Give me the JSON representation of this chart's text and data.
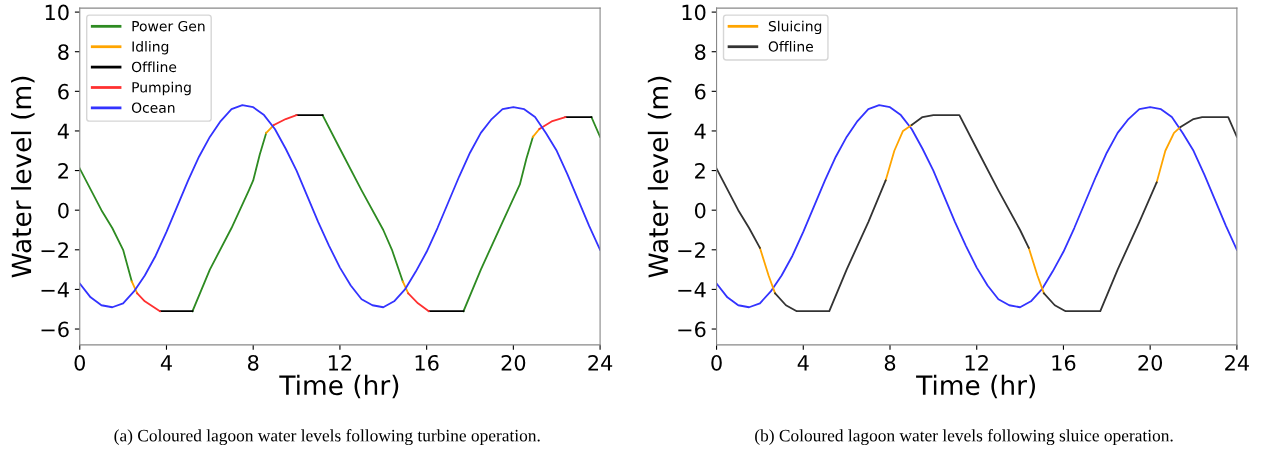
{
  "chart_data": [
    {
      "type": "line",
      "xlabel": "Time (hr)",
      "ylabel": "Water level (m)",
      "xlim": [
        0,
        24
      ],
      "ylim": [
        -6.8,
        10.2
      ],
      "xticks": [
        0,
        4,
        8,
        12,
        16,
        20,
        24
      ],
      "yticks": [
        -6,
        -4,
        -2,
        0,
        2,
        4,
        6,
        8,
        10
      ],
      "grid": false,
      "legend": "top left",
      "line_style": "solid",
      "marker": "none",
      "annotations": [
        "(a) Coloured lagoon water levels following turbine operation."
      ],
      "series": [
        {
          "name": "Power Gen",
          "color": "#2e8b22",
          "x": [
            0,
            1,
            1.5,
            2,
            2.4,
            null,
            5.2,
            6,
            7,
            7.8,
            8.0,
            8.3,
            8.6,
            null,
            11.2,
            12,
            13,
            14,
            14.4,
            14.9,
            null,
            17.7,
            18.5,
            19.5,
            20.3,
            20.6,
            20.9,
            null,
            23.6,
            24
          ],
          "values": [
            2.1,
            0.0,
            -0.9,
            -2.0,
            -3.6,
            null,
            -5.1,
            -3.0,
            -0.9,
            1.0,
            1.5,
            2.8,
            3.9,
            null,
            4.8,
            3.1,
            1.0,
            -1.0,
            -2.0,
            -3.6,
            null,
            -5.1,
            -3.0,
            -0.6,
            1.3,
            2.6,
            3.7,
            null,
            4.7,
            3.7
          ]
        },
        {
          "name": "Idling",
          "color": "#ffa500",
          "x": [
            2.4,
            2.65,
            null,
            8.6,
            8.95,
            null,
            14.9,
            15.15,
            null,
            20.9,
            21.2
          ],
          "values": [
            -3.6,
            -4.2,
            null,
            3.9,
            4.3,
            null,
            -3.6,
            -4.2,
            null,
            3.7,
            4.1
          ]
        },
        {
          "name": "Offline",
          "color": "#000000",
          "x": [
            3.7,
            5.2,
            null,
            10,
            11.2,
            null,
            16.1,
            17.7,
            null,
            22.4,
            23.6
          ],
          "values": [
            -5.1,
            -5.1,
            null,
            4.8,
            4.8,
            null,
            -5.1,
            -5.1,
            null,
            4.7,
            4.7
          ]
        },
        {
          "name": "Pumping",
          "color": "#ff3030",
          "x": [
            2.65,
            3,
            3.7,
            null,
            8.95,
            9.5,
            10,
            null,
            15.15,
            15.6,
            16.1,
            null,
            21.2,
            21.8,
            22.4
          ],
          "values": [
            -4.2,
            -4.6,
            -5.1,
            null,
            4.3,
            4.6,
            4.8,
            null,
            -4.2,
            -4.7,
            -5.1,
            null,
            4.1,
            4.5,
            4.7
          ]
        },
        {
          "name": "Ocean",
          "color": "#3333ff",
          "x": [
            0,
            0.5,
            1,
            1.5,
            2,
            2.5,
            3,
            3.5,
            4,
            4.5,
            5,
            5.5,
            6,
            6.5,
            7,
            7.5,
            8,
            8.5,
            9,
            9.5,
            10,
            10.5,
            11,
            11.5,
            12,
            12.5,
            13,
            13.5,
            14,
            14.5,
            15,
            15.5,
            16,
            16.5,
            17,
            17.5,
            18,
            18.5,
            19,
            19.5,
            20,
            20.5,
            21,
            21.5,
            22,
            22.5,
            23,
            23.5,
            24
          ],
          "values": [
            -3.7,
            -4.4,
            -4.8,
            -4.9,
            -4.7,
            -4.1,
            -3.3,
            -2.3,
            -1.1,
            0.2,
            1.5,
            2.7,
            3.7,
            4.5,
            5.1,
            5.3,
            5.2,
            4.8,
            4.1,
            3.1,
            2.0,
            0.7,
            -0.6,
            -1.8,
            -2.9,
            -3.8,
            -4.5,
            -4.8,
            -4.9,
            -4.6,
            -4.0,
            -3.1,
            -2.1,
            -0.9,
            0.4,
            1.7,
            2.9,
            3.9,
            4.6,
            5.1,
            5.2,
            5.1,
            4.7,
            3.9,
            3.0,
            1.8,
            0.5,
            -0.8,
            -2.0
          ]
        }
      ]
    },
    {
      "type": "line",
      "xlabel": "Time (hr)",
      "ylabel": "Water level (m)",
      "xlim": [
        0,
        24
      ],
      "ylim": [
        -6.8,
        10.2
      ],
      "xticks": [
        0,
        4,
        8,
        12,
        16,
        20,
        24
      ],
      "yticks": [
        -6,
        -4,
        -2,
        0,
        2,
        4,
        6,
        8,
        10
      ],
      "grid": false,
      "legend": "top left",
      "line_style": "solid",
      "marker": "none",
      "annotations": [
        "(b) Coloured lagoon water levels following sluice operation."
      ],
      "series": [
        {
          "color": "#3333ff",
          "x": [
            0,
            0.5,
            1,
            1.5,
            2,
            2.5,
            3,
            3.5,
            4,
            4.5,
            5,
            5.5,
            6,
            6.5,
            7,
            7.5,
            8,
            8.5,
            9,
            9.5,
            10,
            10.5,
            11,
            11.5,
            12,
            12.5,
            13,
            13.5,
            14,
            14.5,
            15,
            15.5,
            16,
            16.5,
            17,
            17.5,
            18,
            18.5,
            19,
            19.5,
            20,
            20.5,
            21,
            21.5,
            22,
            22.5,
            23,
            23.5,
            24
          ],
          "values": [
            -3.7,
            -4.4,
            -4.8,
            -4.9,
            -4.7,
            -4.1,
            -3.3,
            -2.3,
            -1.1,
            0.2,
            1.5,
            2.7,
            3.7,
            4.5,
            5.1,
            5.3,
            5.2,
            4.8,
            4.1,
            3.1,
            2.0,
            0.7,
            -0.6,
            -1.8,
            -2.9,
            -3.8,
            -4.5,
            -4.8,
            -4.9,
            -4.6,
            -4.0,
            -3.1,
            -2.1,
            -0.9,
            0.4,
            1.7,
            2.9,
            3.9,
            4.6,
            5.1,
            5.2,
            5.1,
            4.7,
            3.9,
            3.0,
            1.8,
            0.5,
            -0.8,
            -2.0
          ]
        },
        {
          "name": "Sluicing",
          "color": "#ffa500",
          "x": [
            2,
            2.4,
            2.7,
            null,
            7.8,
            8.2,
            8.6,
            9,
            null,
            14.4,
            14.8,
            15.1,
            null,
            20.3,
            20.7,
            21.1,
            21.4
          ],
          "values": [
            -1.9,
            -3.3,
            -4.2,
            null,
            1.5,
            3.0,
            4.0,
            4.3,
            null,
            -1.9,
            -3.3,
            -4.2,
            null,
            1.4,
            3.0,
            3.9,
            4.2
          ]
        },
        {
          "name": "Offline",
          "color": "#333333",
          "x": [
            0,
            1,
            1.5,
            2,
            null,
            2.7,
            3.2,
            3.7,
            5.2,
            6,
            7,
            7.8,
            null,
            9,
            9.5,
            10,
            11.2,
            12,
            13,
            14,
            14.4,
            null,
            15.1,
            15.6,
            16.1,
            17.7,
            18.5,
            19.5,
            20.3,
            null,
            21.4,
            22,
            22.4,
            23.6,
            24
          ],
          "values": [
            2.1,
            0.0,
            -0.9,
            -1.9,
            null,
            -4.2,
            -4.8,
            -5.1,
            -5.1,
            -3.0,
            -0.6,
            1.5,
            null,
            4.3,
            4.7,
            4.8,
            4.8,
            3.1,
            1.0,
            -1.0,
            -1.9,
            null,
            -4.2,
            -4.8,
            -5.1,
            -5.1,
            -3.0,
            -0.6,
            1.4,
            null,
            4.2,
            4.6,
            4.7,
            4.7,
            3.7
          ]
        }
      ]
    }
  ]
}
